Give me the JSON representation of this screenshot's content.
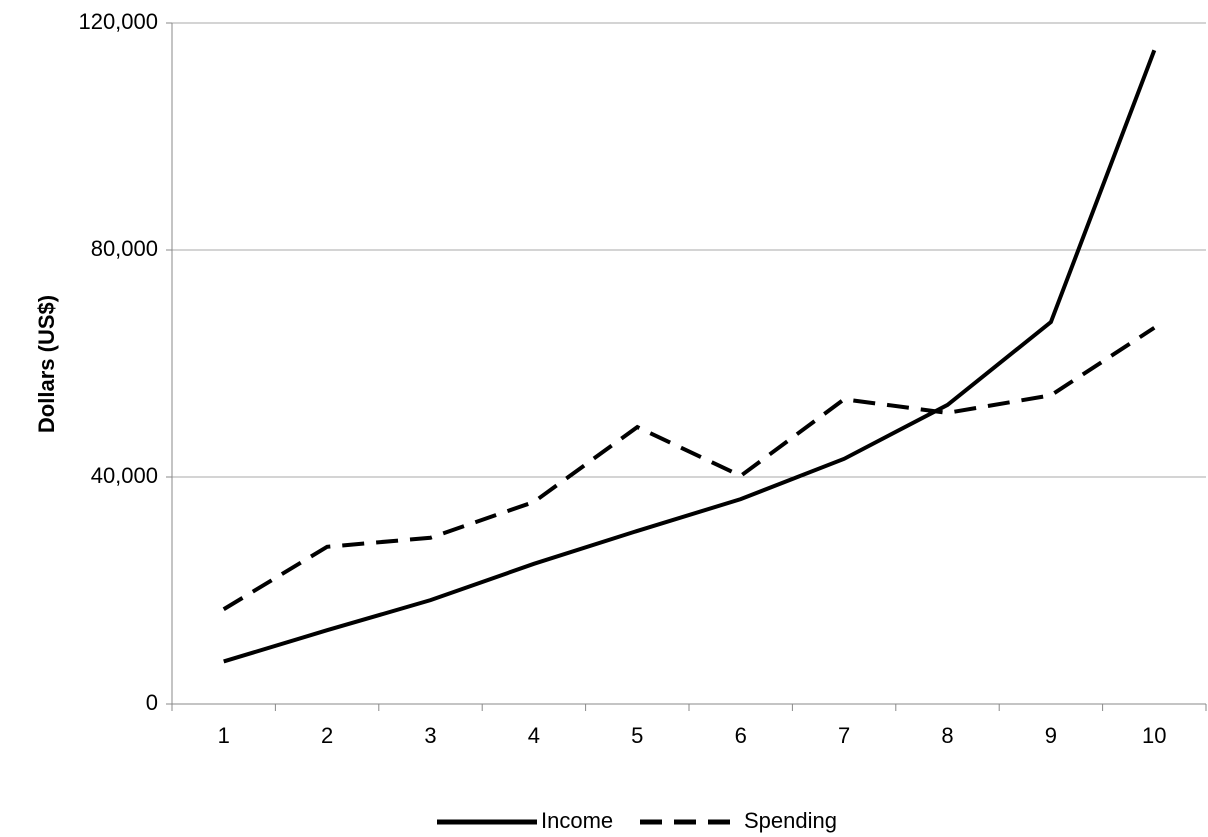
{
  "chart_data": {
    "type": "line",
    "y_label": "Dollars (US$)",
    "categories": [
      "1",
      "2",
      "3",
      "4",
      "5",
      "6",
      "7",
      "8",
      "9",
      "10"
    ],
    "series": [
      {
        "name": "Income",
        "color": "#000000",
        "dash": "solid",
        "values": [
          7500,
          13000,
          18300,
          24700,
          30500,
          36100,
          43200,
          52700,
          67300,
          115200
        ]
      },
      {
        "name": "Spending",
        "color": "#000000",
        "dash": "dashed",
        "values": [
          16700,
          27700,
          29300,
          35600,
          48800,
          40200,
          53700,
          51300,
          54400,
          66300
        ]
      }
    ],
    "ylim": [
      0,
      120000
    ],
    "yticks": [
      0,
      {
        "value": 40000,
        "label": "40,000"
      },
      {
        "value": 80000,
        "label": "80,000"
      },
      {
        "value": 120000,
        "label": "120,000"
      }
    ],
    "grid": true,
    "legend": "bottom"
  }
}
